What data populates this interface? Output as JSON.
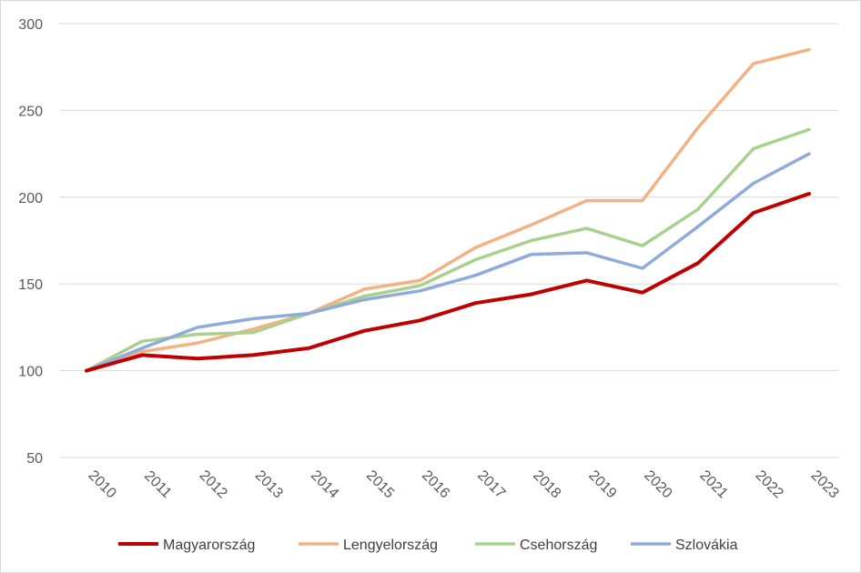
{
  "chart_data": {
    "type": "line",
    "title": "",
    "xlabel": "",
    "ylabel": "",
    "ylim": [
      50,
      300
    ],
    "yticks": [
      50,
      100,
      150,
      200,
      250,
      300
    ],
    "grid": "horizontal",
    "legend_position": "bottom",
    "categories": [
      "2010",
      "2011",
      "2012",
      "2013",
      "2014",
      "2015",
      "2016",
      "2017",
      "2018",
      "2019",
      "2020",
      "2021",
      "2022",
      "2023"
    ],
    "series": [
      {
        "name": "Magyarország",
        "color": "#c00000",
        "values": [
          100,
          109,
          107,
          109,
          113,
          123,
          129,
          139,
          144,
          152,
          145,
          162,
          191,
          202
        ]
      },
      {
        "name": "Lengyelország",
        "color": "#f4b183",
        "values": [
          100,
          111,
          116,
          124,
          133,
          147,
          152,
          171,
          184,
          198,
          198,
          240,
          277,
          285
        ]
      },
      {
        "name": "Csehország",
        "color": "#a9d18e",
        "values": [
          100,
          117,
          121,
          122,
          133,
          143,
          149,
          164,
          175,
          182,
          172,
          193,
          228,
          239
        ]
      },
      {
        "name": "Szlovákia",
        "color": "#8faadc",
        "values": [
          100,
          113,
          125,
          130,
          133,
          141,
          146,
          155,
          167,
          168,
          159,
          183,
          208,
          225
        ]
      }
    ]
  }
}
